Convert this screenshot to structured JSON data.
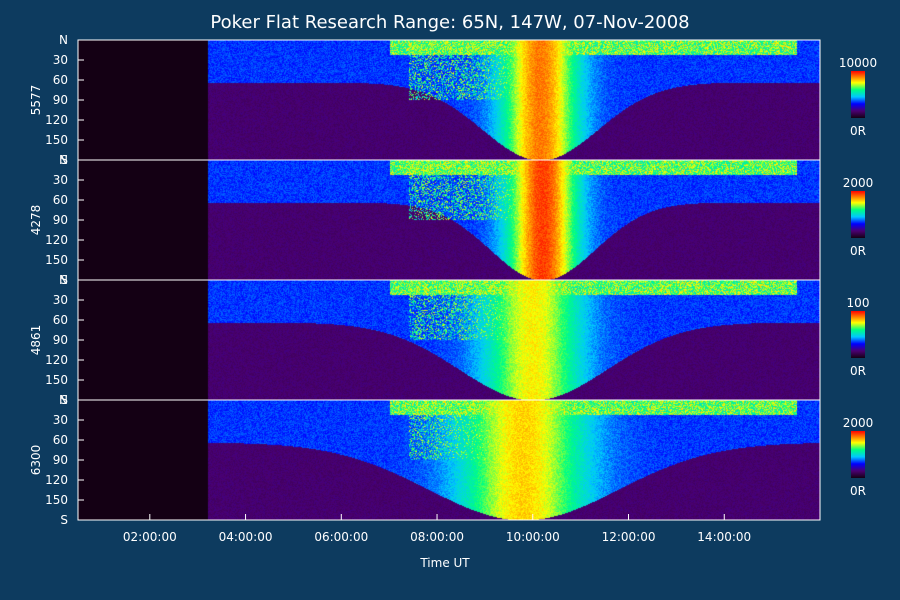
{
  "chart_data": {
    "type": "heatmap",
    "title": "Poker Flat Research Range: 65N, 147W, 07-Nov-2008",
    "xlabel": "Time UT",
    "xlim": [
      0.5,
      16.0
    ],
    "x_ticks": [
      {
        "value": 2,
        "label": "02:00:00"
      },
      {
        "value": 4,
        "label": "04:00:00"
      },
      {
        "value": 6,
        "label": "06:00:00"
      },
      {
        "value": 8,
        "label": "08:00:00"
      },
      {
        "value": 10,
        "label": "10:00:00"
      },
      {
        "value": 12,
        "label": "12:00:00"
      },
      {
        "value": 14,
        "label": "14:00:00"
      }
    ],
    "ylim": [
      0,
      180
    ],
    "y_ticks": [
      {
        "value": 0,
        "label": "N"
      },
      {
        "value": 30,
        "label": "30"
      },
      {
        "value": 60,
        "label": "60"
      },
      {
        "value": 90,
        "label": "90"
      },
      {
        "value": 120,
        "label": "120"
      },
      {
        "value": 150,
        "label": "150"
      },
      {
        "value": 180,
        "label": "S"
      }
    ],
    "data_start_time": 3.2,
    "panels": [
      {
        "ylabel": "5577",
        "cmax_label": "10000",
        "cmin_label": "0R",
        "peak_time": 10.15,
        "spread": 0.55,
        "bias": 0.9
      },
      {
        "ylabel": "4278",
        "cmax_label": "2000",
        "cmin_label": "0R",
        "peak_time": 10.2,
        "spread": 0.5,
        "bias": 1.0
      },
      {
        "ylabel": "4861",
        "cmax_label": "100",
        "cmin_label": "0R",
        "peak_time": 10.0,
        "spread": 0.7,
        "bias": 0.7
      },
      {
        "ylabel": "6300",
        "cmax_label": "2000",
        "cmin_label": "0R",
        "peak_time": 9.8,
        "spread": 0.9,
        "bias": 0.75
      }
    ],
    "colorscale": [
      "#140014",
      "#4b0070",
      "#0000ff",
      "#00c8ff",
      "#00ff80",
      "#ffff00",
      "#ff7800",
      "#ff0000"
    ]
  }
}
